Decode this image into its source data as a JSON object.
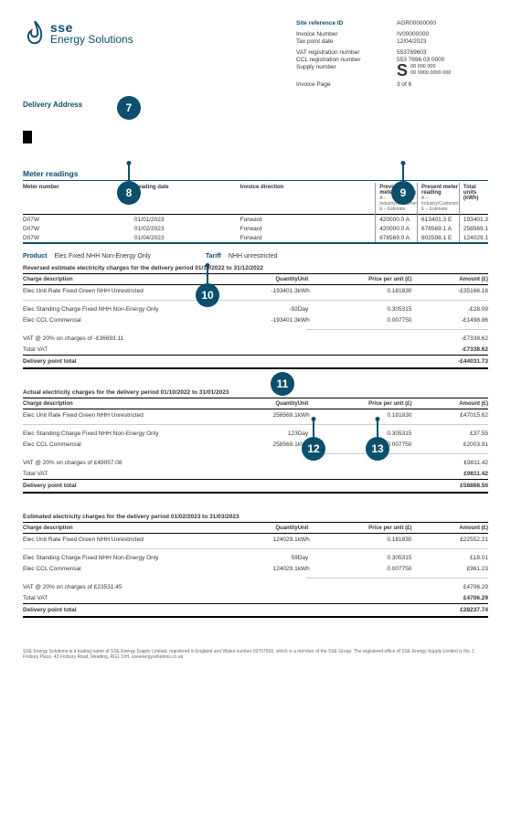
{
  "brand": {
    "word1": "sse",
    "word2": "Energy Solutions",
    "accent": "#0b4f6c"
  },
  "meta": {
    "site_ref_key": "Site reference ID",
    "site_ref": "AGR00000000",
    "invoice_num_key": "Invoice Number",
    "invoice_num": "IV00000000",
    "tax_date_key": "Tax point date",
    "tax_date": "12/04/2023",
    "vat_key": "VAT registration number",
    "vat": "553769603",
    "ccl_key": "CCL registration number",
    "ccl": "553 7696 03 0000",
    "supply_key": "Supply number",
    "supply_top": "00  000 000",
    "supply_bot": "00 0000 0000 000",
    "page_key": "Invoice Page",
    "page": "3 of 6"
  },
  "delivery_label": "Delivery Address",
  "markers": {
    "m7": "7",
    "m8": "8",
    "m9": "9",
    "m10": "10",
    "m11": "11",
    "m12": "12",
    "m13": "13"
  },
  "meter": {
    "title": "Meter readings",
    "cols": [
      "Meter number",
      "Reading date",
      "Invoice direction",
      "Previous meter reading",
      "Present meter reading",
      "Total units (kWh)"
    ],
    "subcols": [
      "A – Industry/Customer",
      "E – Estimate"
    ],
    "rows": [
      {
        "num": "D07W",
        "date": "01/01/2023",
        "dir": "Forward",
        "prev": "420000.0 A",
        "pres": "613401.3 E",
        "units": "193401.3"
      },
      {
        "num": "D07W",
        "date": "01/02/2023",
        "dir": "Forward",
        "prev": "420000.0 A",
        "pres": "678569.1 A",
        "units": "258569.1"
      },
      {
        "num": "D07W",
        "date": "01/04/2023",
        "dir": "Forward",
        "prev": "678569.0 A",
        "pres": "802598.1 E",
        "units": "124029.1"
      }
    ]
  },
  "product": {
    "label": "Product",
    "value": "Elec Fixed NHH Non-Energy Only",
    "tariff_label": "Tariff",
    "tariff_value": "NHH unrestricted"
  },
  "charge_cols": {
    "desc": "Charge description",
    "qty": "Quantity",
    "unit": "Unit",
    "ppu": "Price per unit (£)",
    "amt": "Amount (£)"
  },
  "labels": {
    "vat_charge": "VAT @ 20% on charges of",
    "total_vat": "Total VAT",
    "delivery_total": "Delivery point total"
  },
  "block1": {
    "header": "Reversed estimate electricity charges for the delivery period 01/10/2022 to 31/12/2022",
    "rows": [
      {
        "desc": "Elec Unit Rate Fixed Green NHH Unrestricted",
        "qty": "-193401.3",
        "unit": "kWh",
        "ppu": "0.181830",
        "amt": "-£35166.16"
      },
      {
        "desc": "Elec Standing Charge Fixed NHH Non-Energy Only",
        "qty": "-92",
        "unit": "Day",
        "ppu": "0.305315",
        "amt": "-£28.09"
      },
      {
        "desc": "Elec CCL Commercial",
        "qty": "-193401.3",
        "unit": "kWh",
        "ppu": "0.007750",
        "amt": "-£1498.86"
      }
    ],
    "vat_base": "-£36693.11",
    "vat_amt": "-£7338.62",
    "total_vat_amt": "-£7338.62",
    "total": "-£44031.73"
  },
  "block2": {
    "header": "Actual electricity charges for the delivery period 01/10/2022 to 31/01/2023",
    "rows": [
      {
        "desc": "Elec Unit Rate Fixed Green NHH Unrestricted",
        "qty": "258569.1",
        "unit": "kWh",
        "ppu": "0.181830",
        "amt": "£47015.62"
      },
      {
        "desc": "Elec Standing Charge Fixed NHH Non-Energy Only",
        "qty": "123",
        "unit": "Day",
        "ppu": "0.305315",
        "amt": "£37.55"
      },
      {
        "desc": "Elec CCL Commercial",
        "qty": "258569.1",
        "unit": "kWh",
        "ppu": "0.007750",
        "amt": "£2003.91"
      }
    ],
    "vat_base": "£49057.08",
    "vat_amt": "£9811.42",
    "total_vat_amt": "£9811.42",
    "total": "£58868.50"
  },
  "block3": {
    "header": "Estimated electricity charges for the delivery period 01/02/2023 to 31/03/2023",
    "rows": [
      {
        "desc": "Elec Unit Rate Fixed Green NHH Unrestricted",
        "qty": "124029.1",
        "unit": "kWh",
        "ppu": "0.181830",
        "amt": "£22552.21"
      },
      {
        "desc": "Elec Standing Charge Fixed NHH Non-Energy Only",
        "qty": "59",
        "unit": "Day",
        "ppu": "0.305315",
        "amt": "£18.01"
      },
      {
        "desc": "Elec CCL Commercial",
        "qty": "124029.1",
        "unit": "kWh",
        "ppu": "0.007750",
        "amt": "£961.23"
      }
    ],
    "vat_base": "£23531.45",
    "vat_amt": "£4706.29",
    "total_vat_amt": "£4706.29",
    "total": "£28237.74"
  },
  "footer": "SSE Energy Solutions is a trading name of SSE Energy Supply Limited, registered in England and Wales number 03757502, which is a member of the SSE Group. The registered office of SSE Energy Supply Limited is No. 1 Forbury Place, 43 Forbury Road, Reading, RG1 3JH. sseenergysolutions.co.uk"
}
